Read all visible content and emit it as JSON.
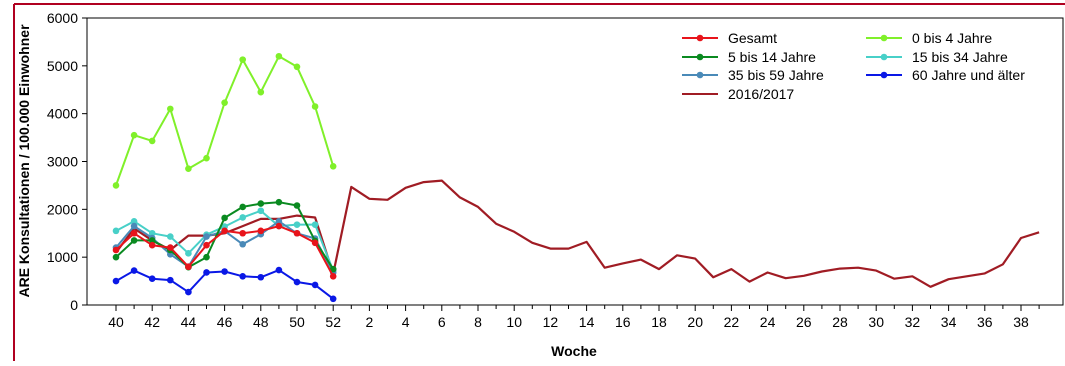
{
  "chart_data": {
    "type": "line",
    "xlabel": "Woche",
    "ylabel": "ARE Konsultationen / 100.000 Einwohner",
    "ylim": [
      0,
      6000
    ],
    "yticks": [
      0,
      1000,
      2000,
      3000,
      4000,
      5000,
      6000
    ],
    "ytick_labels": [
      "0",
      "1000",
      "2000",
      "3000",
      "4000",
      "5000",
      "6000"
    ],
    "x_categories": [
      "40",
      "41",
      "42",
      "43",
      "44",
      "45",
      "46",
      "47",
      "48",
      "49",
      "50",
      "51",
      "52",
      "1",
      "2",
      "3",
      "4",
      "5",
      "6",
      "7",
      "8",
      "9",
      "10",
      "11",
      "12",
      "13",
      "14",
      "15",
      "16",
      "17",
      "18",
      "19",
      "20",
      "21",
      "22",
      "23",
      "24",
      "25",
      "26",
      "27",
      "28",
      "29",
      "30",
      "31",
      "32",
      "33",
      "34",
      "35",
      "36",
      "37",
      "38",
      "39"
    ],
    "xtick_labels": [
      "40",
      "42",
      "44",
      "46",
      "48",
      "50",
      "52",
      "2",
      "4",
      "6",
      "8",
      "10",
      "12",
      "14",
      "16",
      "18",
      "20",
      "22",
      "24",
      "26",
      "28",
      "30",
      "32",
      "34",
      "36",
      "38"
    ],
    "grid": false,
    "legend_position": "top-right",
    "series": [
      {
        "name": "Gesamt",
        "color": "#e8141b",
        "markers": true,
        "values": [
          1150,
          1500,
          1250,
          1200,
          800,
          1250,
          1550,
          1500,
          1550,
          1650,
          1500,
          1300,
          600
        ]
      },
      {
        "name": "0 bis 4 Jahre",
        "color": "#80f02a",
        "markers": true,
        "values": [
          2500,
          3550,
          3430,
          4100,
          2850,
          3070,
          4230,
          5130,
          4450,
          5200,
          4980,
          4150,
          2900
        ]
      },
      {
        "name": "5 bis 14 Jahre",
        "color": "#0a8a20",
        "markers": true,
        "values": [
          1000,
          1350,
          1350,
          1150,
          790,
          1000,
          1820,
          2050,
          2120,
          2150,
          2080,
          1340,
          750
        ]
      },
      {
        "name": "15 bis 34 Jahre",
        "color": "#48d0c8",
        "markers": true,
        "values": [
          1550,
          1750,
          1500,
          1430,
          1080,
          1470,
          1640,
          1830,
          1970,
          1650,
          1680,
          1680,
          720
        ]
      },
      {
        "name": "35 bis 59 Jahre",
        "color": "#4a8ab8",
        "markers": true,
        "values": [
          1200,
          1650,
          1400,
          1060,
          800,
          1430,
          1550,
          1270,
          1480,
          1750,
          1500,
          1390,
          680
        ]
      },
      {
        "name": "60 Jahre und älter",
        "color": "#0a18e6",
        "markers": true,
        "values": [
          500,
          720,
          550,
          520,
          270,
          680,
          700,
          600,
          580,
          730,
          480,
          420,
          130
        ]
      },
      {
        "name": "2016/2017",
        "color": "#a01c24",
        "markers": false,
        "values": [
          1100,
          1600,
          1350,
          1150,
          1450,
          1450,
          1500,
          1650,
          1800,
          1800,
          1870,
          1830,
          650,
          2470,
          2220,
          2200,
          2450,
          2570,
          2600,
          2250,
          2050,
          1700,
          1530,
          1300,
          1180,
          1180,
          1320,
          780,
          870,
          950,
          750,
          1040,
          970,
          580,
          750,
          490,
          680,
          560,
          610,
          700,
          760,
          780,
          720,
          550,
          600,
          380,
          540,
          600,
          660,
          850,
          1400,
          1520
        ]
      }
    ]
  }
}
